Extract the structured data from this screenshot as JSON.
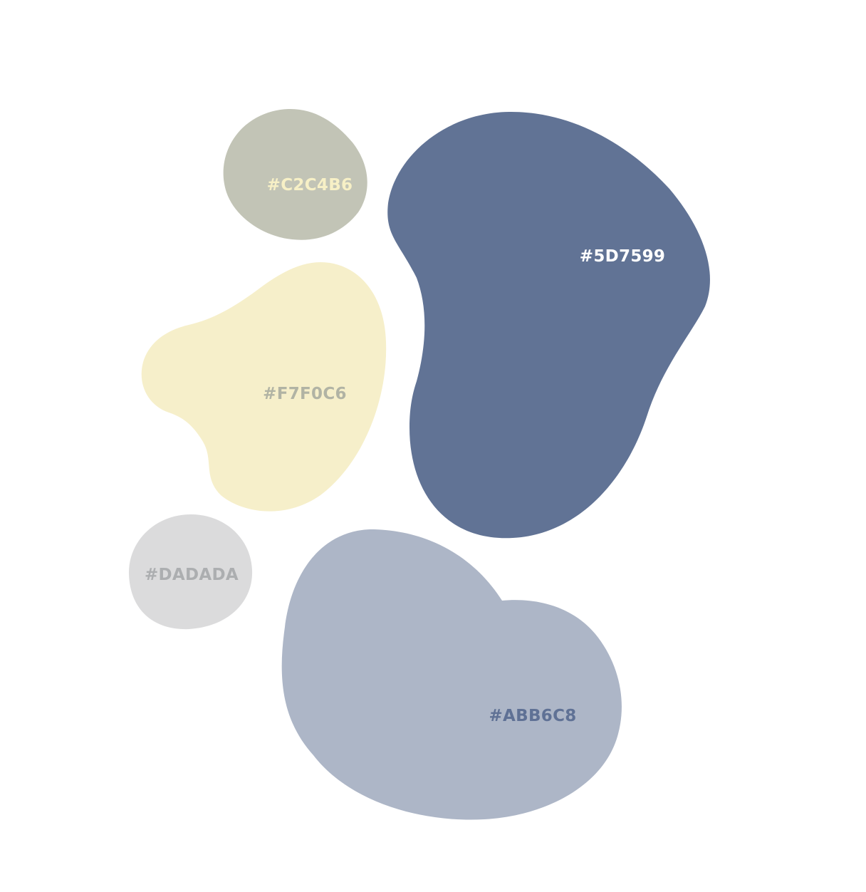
{
  "palette": {
    "swatches": [
      {
        "id": "sage",
        "label": "#C2C4B6",
        "fill": "#C2C4B6",
        "text_color": "#F7F0C6"
      },
      {
        "id": "slate-blue",
        "label": "#5D7599",
        "fill": "#617395",
        "text_color": "#FFFFFF"
      },
      {
        "id": "cream",
        "label": "#F7F0C6",
        "fill": "#F6EFCA",
        "text_color": "#B1B3A4"
      },
      {
        "id": "light-gray",
        "label": "#DADADA",
        "fill": "#DBDBDC",
        "text_color": "#ACAEB0"
      },
      {
        "id": "periwinkle",
        "label": "#ABB6C8",
        "fill": "#ADB6C7",
        "text_color": "#5F7195"
      }
    ]
  }
}
